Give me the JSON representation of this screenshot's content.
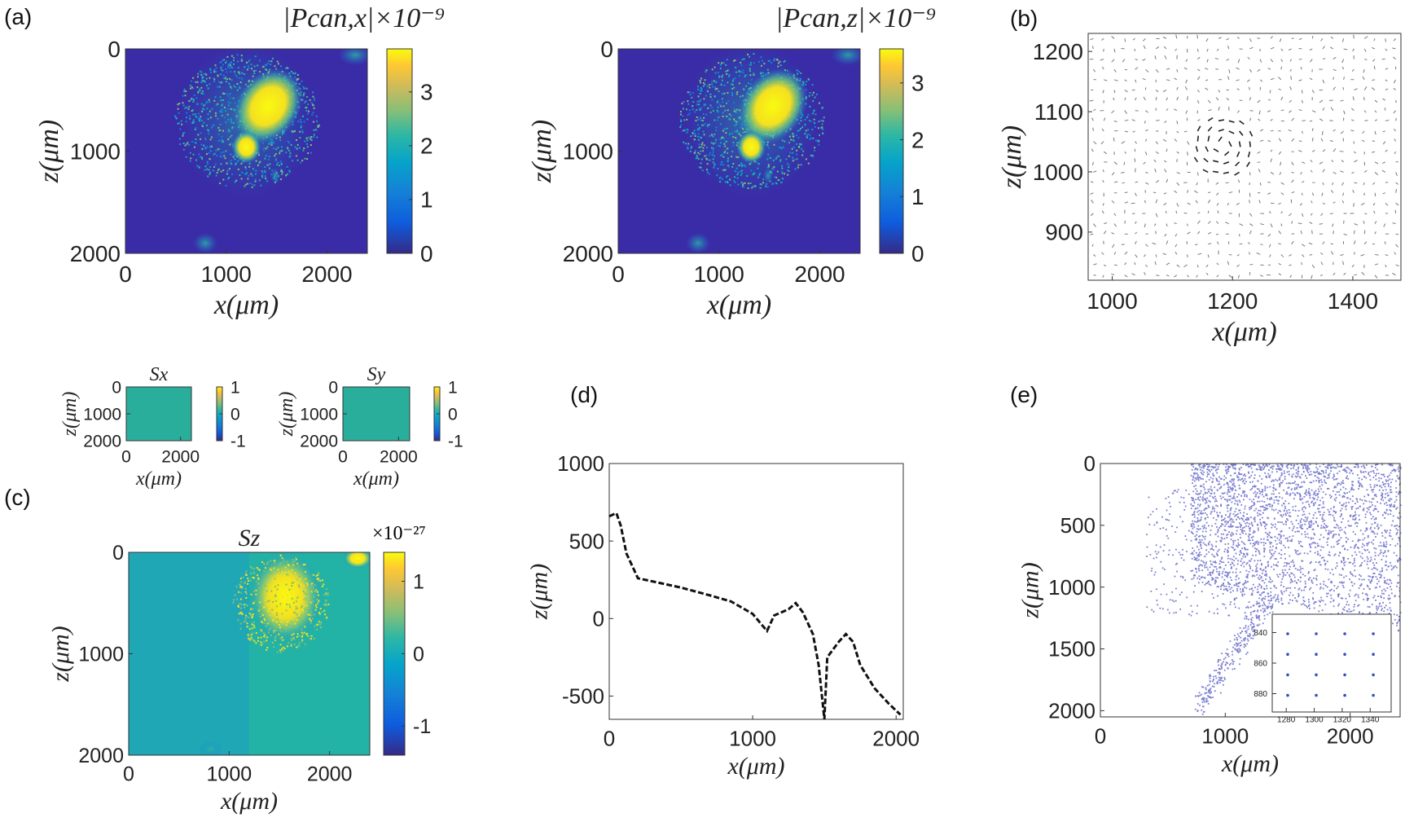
{
  "panel_labels": [
    "(a)",
    "(b)",
    "(c)",
    "(d)",
    "(e)"
  ],
  "chart_data": [
    {
      "type": "heatmap",
      "xlabel": "x(μm)",
      "ylabel": "z(μm)",
      "colorbar_label": "|Pcan,x|×10⁻⁹",
      "xlim": [
        0,
        2400
      ],
      "xticks": [
        0,
        1000,
        2000
      ],
      "ylim": [
        0,
        2000
      ],
      "yticks": [
        0,
        1000,
        2000
      ],
      "y_reversed": true,
      "clim": [
        0,
        3.8
      ],
      "cticks": [
        0,
        1,
        2,
        3
      ]
    },
    {
      "type": "heatmap",
      "xlabel": "x(μm)",
      "ylabel": "z(μm)",
      "colorbar_label": "|Pcan,z|×10⁻⁹",
      "xlim": [
        0,
        2400
      ],
      "xticks": [
        0,
        1000,
        2000
      ],
      "ylim": [
        0,
        2000
      ],
      "yticks": [
        0,
        1000,
        2000
      ],
      "y_reversed": true,
      "clim": [
        0,
        3.6
      ],
      "cticks": [
        0,
        1,
        2,
        3
      ]
    },
    {
      "type": "quiver",
      "xlabel": "x(μm)",
      "ylabel": "z(μm)",
      "xlim": [
        960,
        1480
      ],
      "xticks": [
        1000,
        1200,
        1400
      ],
      "ylim": [
        820,
        1230
      ],
      "yticks": [
        900,
        1000,
        1100,
        1200
      ]
    },
    {
      "type": "heatmap",
      "title": "Sx",
      "xlabel": "x(μm)",
      "ylabel": "z(μm)",
      "xlim": [
        0,
        2400
      ],
      "xticks": [
        0,
        2000
      ],
      "ylim": [
        0,
        2000
      ],
      "yticks": [
        0,
        1000,
        2000
      ],
      "y_reversed": true,
      "clim": [
        -1,
        1
      ],
      "cticks": [
        -1,
        0,
        1
      ]
    },
    {
      "type": "heatmap",
      "title": "Sy",
      "xlabel": "x(μm)",
      "ylabel": "z(μm)",
      "xlim": [
        0,
        2400
      ],
      "xticks": [
        0,
        2000
      ],
      "ylim": [
        0,
        2000
      ],
      "yticks": [
        0,
        1000,
        2000
      ],
      "y_reversed": true,
      "clim": [
        -1,
        1
      ],
      "cticks": [
        -1,
        0,
        1
      ]
    },
    {
      "type": "heatmap",
      "title": "Sz",
      "colorbar_label": "×10⁻²⁷",
      "xlabel": "x(μm)",
      "ylabel": "z(μm)",
      "xlim": [
        0,
        2400
      ],
      "xticks": [
        0,
        1000,
        2000
      ],
      "ylim": [
        0,
        2000
      ],
      "yticks": [
        0,
        1000,
        2000
      ],
      "y_reversed": true,
      "clim": [
        -1.4,
        1.4
      ],
      "cticks": [
        -1,
        0,
        1
      ]
    },
    {
      "type": "line",
      "xlabel": "x(μm)",
      "ylabel": "z(μm)",
      "color": "#111111",
      "xlim": [
        0,
        2050
      ],
      "xticks": [
        0,
        1000,
        2000
      ],
      "ylim": [
        -650,
        1000
      ],
      "yticks": [
        -500,
        0,
        500,
        1000
      ],
      "x": [
        0,
        50,
        80,
        120,
        200,
        300,
        500,
        700,
        850,
        1000,
        1100,
        1150,
        1250,
        1300,
        1350,
        1420,
        1460,
        1500,
        1520,
        1560,
        1600,
        1650,
        1700,
        1750,
        1850,
        1950,
        2030
      ],
      "values": [
        660,
        680,
        600,
        420,
        260,
        240,
        200,
        150,
        110,
        30,
        -80,
        20,
        60,
        100,
        40,
        -100,
        -300,
        -650,
        -250,
        -200,
        -150,
        -100,
        -150,
        -300,
        -450,
        -550,
        -620
      ]
    },
    {
      "type": "scatter",
      "xlabel": "x(μm)",
      "ylabel": "z(μm)",
      "color": "#7b7fd0",
      "xlim": [
        0,
        2400
      ],
      "xticks": [
        0,
        1000,
        2000
      ],
      "ylim": [
        0,
        2050
      ],
      "yticks": [
        0,
        500,
        1000,
        1500,
        2000
      ],
      "y_reversed": true,
      "inset": {
        "xlim": [
          1270,
          1355
        ],
        "xticks": [
          1280,
          1300,
          1320,
          1340
        ],
        "ylim": [
          828,
          892
        ],
        "yticks": [
          840,
          860,
          880
        ],
        "y_reversed": true
      }
    }
  ]
}
